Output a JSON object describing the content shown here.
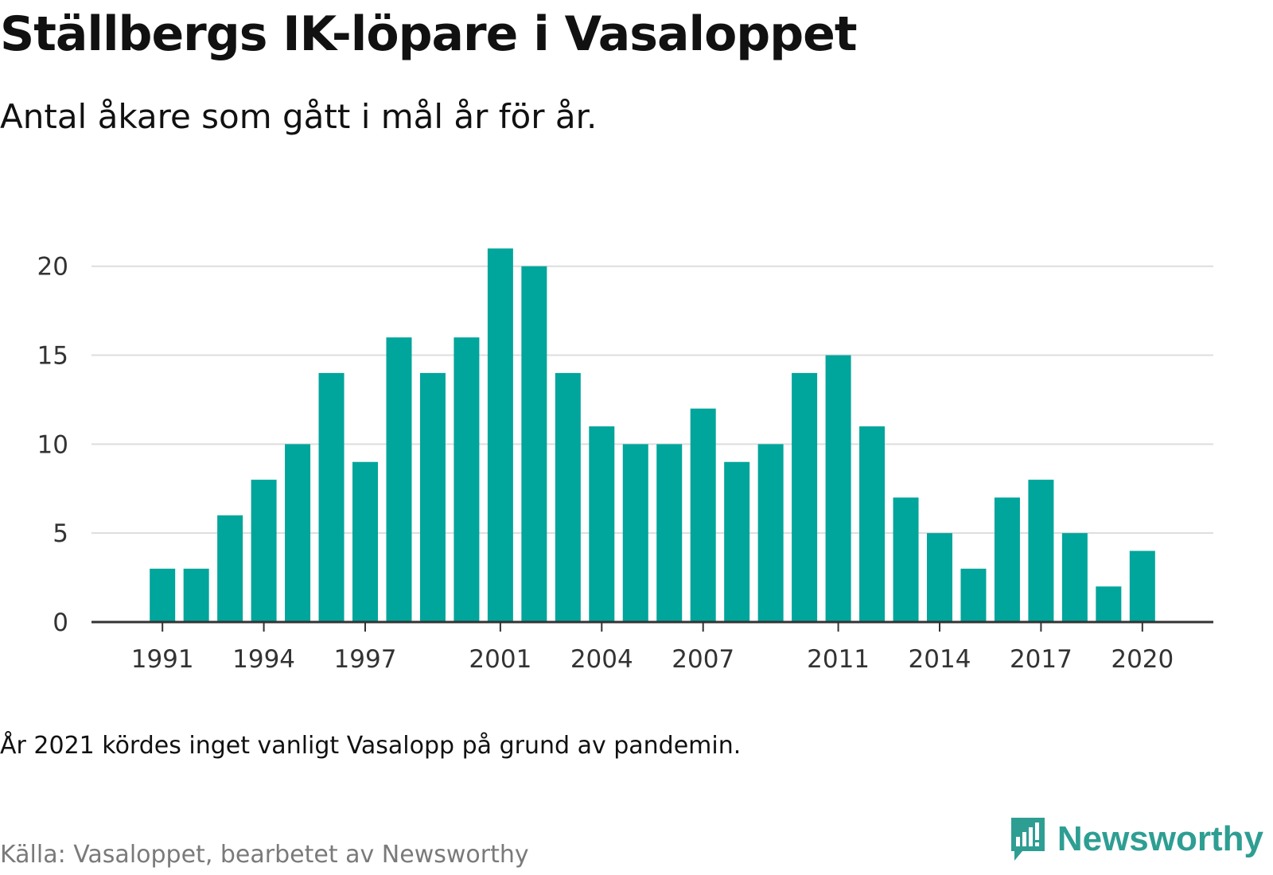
{
  "header": {
    "title": "Ställbergs IK-löpare i Vasaloppet",
    "subtitle": "Antal åkare som gått i mål år för år."
  },
  "footer": {
    "note": "År 2021 kördes inget vanligt Vasalopp på grund av pandemin.",
    "source": "Källa: Vasaloppet, bearbetet av Newsworthy",
    "brand": "Newsworthy",
    "brand_icon": "newsworthy-logo-icon"
  },
  "colors": {
    "bar": "#00a59b",
    "grid": "#dddddd",
    "axis": "#333333",
    "brand": "#2e9e93"
  },
  "chart_data": {
    "type": "bar",
    "title": "Ställbergs IK-löpare i Vasaloppet",
    "subtitle": "Antal åkare som gått i mål år för år.",
    "xlabel": "",
    "ylabel": "",
    "categories": [
      1991,
      1992,
      1993,
      1994,
      1995,
      1996,
      1997,
      1998,
      1999,
      2000,
      2001,
      2002,
      2003,
      2004,
      2005,
      2006,
      2007,
      2008,
      2009,
      2010,
      2011,
      2012,
      2013,
      2014,
      2015,
      2016,
      2017,
      2018,
      2019,
      2020
    ],
    "values": [
      3,
      3,
      6,
      8,
      10,
      14,
      9,
      16,
      14,
      16,
      21,
      20,
      14,
      11,
      10,
      10,
      12,
      9,
      10,
      14,
      15,
      11,
      7,
      5,
      3,
      7,
      8,
      5,
      2,
      4
    ],
    "x_tick_labels": [
      "1991",
      "1994",
      "1997",
      "2001",
      "2004",
      "2007",
      "2011",
      "2014",
      "2017",
      "2020"
    ],
    "y_ticks": [
      0,
      5,
      10,
      15,
      20
    ],
    "ylim": [
      0,
      22
    ],
    "xlim": [
      1988.9,
      2022.1
    ],
    "grid": true,
    "legend": "none"
  }
}
